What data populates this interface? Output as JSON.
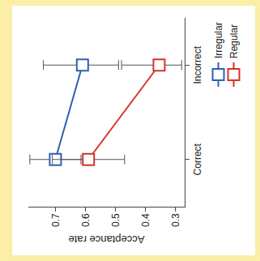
{
  "chart_data": {
    "type": "line",
    "y_label": "Acceptance rate",
    "categories": [
      "Correct",
      "Incorrect"
    ],
    "series": [
      {
        "name": "Irregular",
        "color": "#2f5fb3",
        "values": [
          0.7,
          0.61
        ],
        "error_plus": [
          0.085,
          0.13
        ],
        "error_minus": [
          0.085,
          0.12
        ]
      },
      {
        "name": "Regular",
        "color": "#d7322b",
        "values": [
          0.59,
          0.355
        ],
        "error_plus": [
          0.12,
          0.125
        ],
        "error_minus": [
          0.12,
          0.075
        ]
      }
    ],
    "ylim": [
      0.27,
      0.79
    ],
    "yticks": [
      0.3,
      0.4,
      0.5,
      0.6,
      0.7
    ],
    "grid": false,
    "legend": "bottom-right",
    "marker": "square"
  }
}
